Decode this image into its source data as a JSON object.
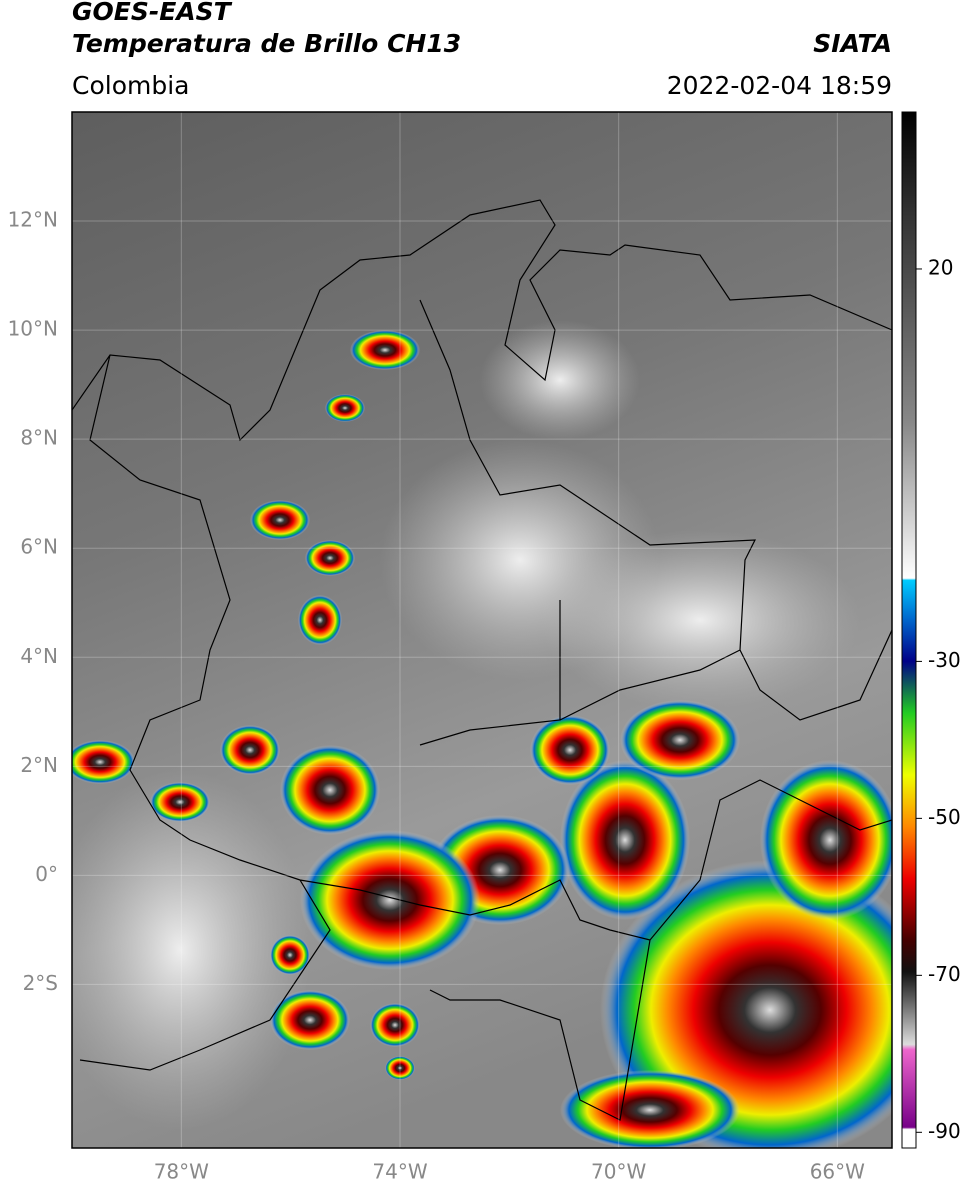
{
  "header": {
    "title": "GOES-EAST",
    "subtitle": "Temperatura de Brillo CH13",
    "source": "SIATA",
    "region": "Colombia",
    "datetime": "2022-02-04 18:59"
  },
  "map": {
    "lon_range": [
      -80,
      -65
    ],
    "lat_range": [
      -5,
      14
    ],
    "lat_ticks": [
      {
        "value": 12,
        "label": "12°N"
      },
      {
        "value": 10,
        "label": "10°N"
      },
      {
        "value": 8,
        "label": "8°N"
      },
      {
        "value": 6,
        "label": "6°N"
      },
      {
        "value": 4,
        "label": "4°N"
      },
      {
        "value": 2,
        "label": "2°N"
      },
      {
        "value": 0,
        "label": "0°"
      },
      {
        "value": -2,
        "label": "2°S"
      }
    ],
    "lon_ticks": [
      {
        "value": -78,
        "label": "78°W"
      },
      {
        "value": -74,
        "label": "74°W"
      },
      {
        "value": -70,
        "label": "70°W"
      },
      {
        "value": -66,
        "label": "66°W"
      }
    ]
  },
  "colorbar": {
    "range": [
      -92,
      40
    ],
    "ticks": [
      20,
      -30,
      -50,
      -70,
      -90
    ]
  }
}
